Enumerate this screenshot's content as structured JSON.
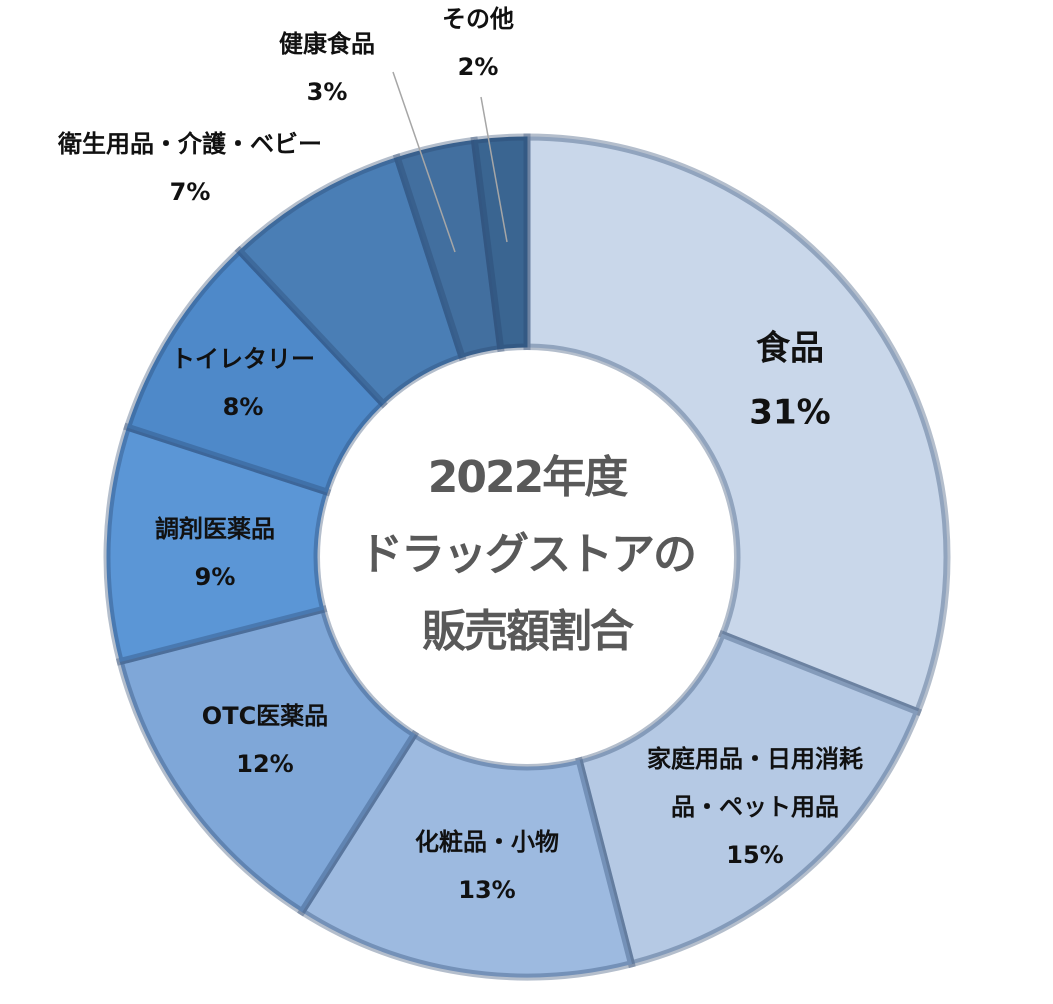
{
  "chart_data": {
    "type": "pie",
    "variant": "donut",
    "center_text": [
      "2022年度",
      "ドラッグストアの",
      "販売額割合"
    ],
    "unit": "%",
    "slices": [
      {
        "name": "食品",
        "value": 31,
        "label": "31%",
        "color": "#c9d7ea"
      },
      {
        "name": "家庭用品・日用消耗品・ペット用品",
        "value": 15,
        "label": "15%",
        "color": "#b5c9e4",
        "name_lines": [
          "家庭用品・日用消耗",
          "品・ペット用品"
        ]
      },
      {
        "name": "化粧品・小物",
        "value": 13,
        "label": "13%",
        "color": "#9dbae0"
      },
      {
        "name": "OTC医薬品",
        "value": 12,
        "label": "12%",
        "color": "#7fa7d8"
      },
      {
        "name": "調剤医薬品",
        "value": 9,
        "label": "9%",
        "color": "#5b96d6"
      },
      {
        "name": "トイレタリー",
        "value": 8,
        "label": "8%",
        "color": "#4e89c9"
      },
      {
        "name": "衛生用品・介護・ベビー",
        "value": 7,
        "label": "7%",
        "color": "#4a7eb5"
      },
      {
        "name": "健康食品",
        "value": 3,
        "label": "3%",
        "color": "#426f9f"
      },
      {
        "name": "その他",
        "value": 2,
        "label": "2%",
        "color": "#3a6591"
      }
    ]
  }
}
